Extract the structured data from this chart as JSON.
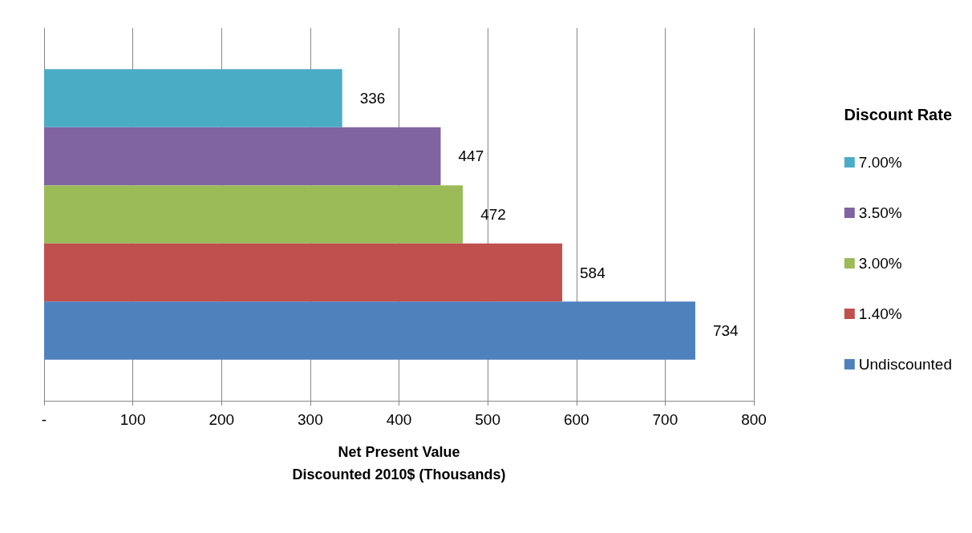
{
  "chart_data": {
    "type": "bar",
    "orientation": "horizontal",
    "xlabel": "Net Present Value\nDiscounted 2010$ (Thousands)",
    "legend_title": "Discount Rate",
    "categories": [
      null
    ],
    "series": [
      {
        "name": "7.00%",
        "color": "#4bacc6",
        "values": [
          336
        ]
      },
      {
        "name": "3.50%",
        "color": "#8064a2",
        "values": [
          447
        ]
      },
      {
        "name": "3.00%",
        "color": "#9bbb59",
        "values": [
          472
        ]
      },
      {
        "name": "1.40%",
        "color": "#c0504d",
        "values": [
          584
        ]
      },
      {
        "name": "Undiscounted",
        "color": "#4f81bd",
        "values": [
          734
        ]
      }
    ],
    "xlim": [
      0,
      800
    ],
    "xticks": [
      {
        "value": 0,
        "label": "-"
      },
      100,
      200,
      300,
      400,
      500,
      600,
      700,
      800
    ],
    "grid": "x",
    "legend": "right",
    "data_labels": true
  }
}
